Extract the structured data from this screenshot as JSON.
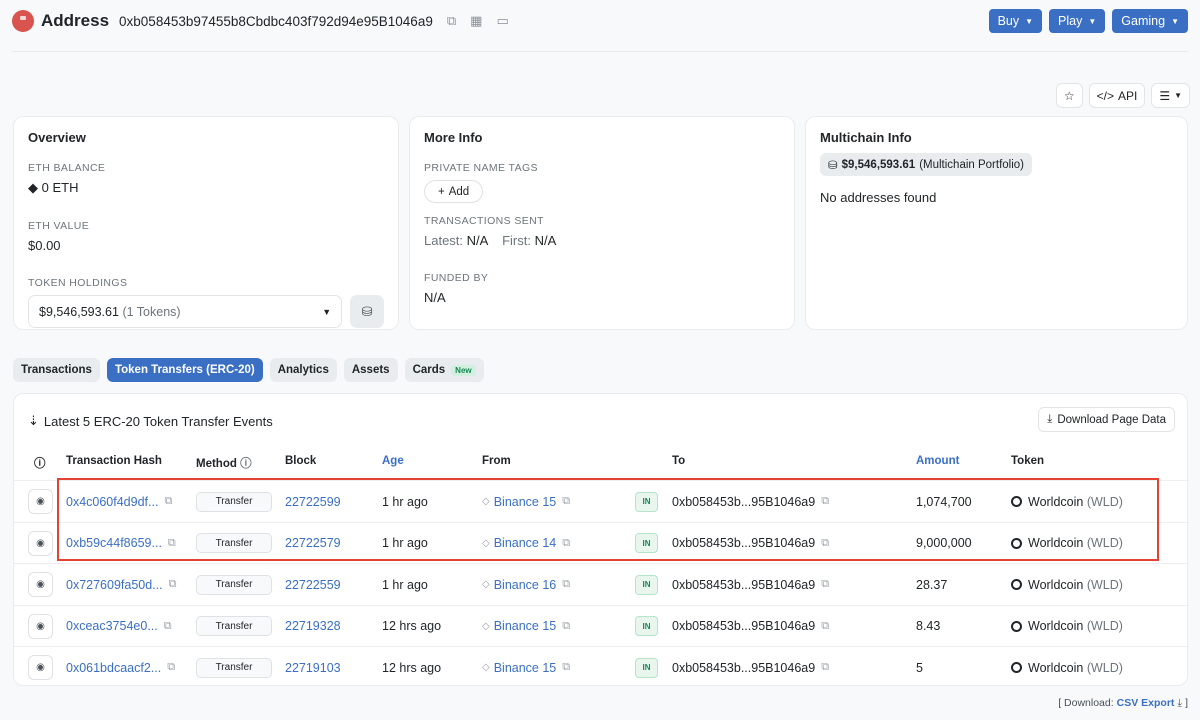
{
  "header": {
    "title": "Address",
    "address": "0xb058453b97455b8Cbdbc403f792d94e95B1046a9",
    "buttons": [
      {
        "label": "Buy"
      },
      {
        "label": "Play"
      },
      {
        "label": "Gaming"
      }
    ]
  },
  "toolbar": {
    "api_label": "API"
  },
  "overview": {
    "title": "Overview",
    "eth_balance_label": "ETH BALANCE",
    "eth_balance": "0 ETH",
    "eth_value_label": "ETH VALUE",
    "eth_value": "$0.00",
    "token_holdings_label": "TOKEN HOLDINGS",
    "token_holdings_value": "$9,546,593.61",
    "token_holdings_count": "(1 Tokens)"
  },
  "more_info": {
    "title": "More Info",
    "private_tags_label": "PRIVATE NAME TAGS",
    "add_label": "Add",
    "tx_sent_label": "TRANSACTIONS SENT",
    "latest_label": "Latest:",
    "latest_value": "N/A",
    "first_label": "First:",
    "first_value": "N/A",
    "funded_by_label": "FUNDED BY",
    "funded_by_value": "N/A"
  },
  "multichain": {
    "title": "Multichain Info",
    "portfolio_value": "$9,546,593.61",
    "portfolio_label": "(Multichain Portfolio)",
    "no_addresses": "No addresses found"
  },
  "tabs": [
    {
      "label": "Transactions",
      "active": false
    },
    {
      "label": "Token Transfers (ERC-20)",
      "active": true
    },
    {
      "label": "Analytics",
      "active": false
    },
    {
      "label": "Assets",
      "active": false
    },
    {
      "label": "Cards",
      "active": false,
      "badge": "New"
    }
  ],
  "table": {
    "title": "Latest 5 ERC-20 Token Transfer Events",
    "download_label": "Download Page Data",
    "columns": {
      "hash": "Transaction Hash",
      "method": "Method",
      "block": "Block",
      "age": "Age",
      "from": "From",
      "to": "To",
      "amount": "Amount",
      "token": "Token"
    },
    "rows": [
      {
        "hash": "0x4c060f4d9df...",
        "method": "Transfer",
        "block": "22722599",
        "age": "1 hr ago",
        "from": "Binance 15",
        "direction": "IN",
        "to": "0xb058453b...95B1046a9",
        "amount": "1,074,700",
        "token": "Worldcoin",
        "symbol": "(WLD)"
      },
      {
        "hash": "0xb59c44f8659...",
        "method": "Transfer",
        "block": "22722579",
        "age": "1 hr ago",
        "from": "Binance 14",
        "direction": "IN",
        "to": "0xb058453b...95B1046a9",
        "amount": "9,000,000",
        "token": "Worldcoin",
        "symbol": "(WLD)"
      },
      {
        "hash": "0x727609fa50d...",
        "method": "Transfer",
        "block": "22722559",
        "age": "1 hr ago",
        "from": "Binance 16",
        "direction": "IN",
        "to": "0xb058453b...95B1046a9",
        "amount": "28.37",
        "token": "Worldcoin",
        "symbol": "(WLD)"
      },
      {
        "hash": "0xceac3754e0...",
        "method": "Transfer",
        "block": "22719328",
        "age": "12 hrs ago",
        "from": "Binance 15",
        "direction": "IN",
        "to": "0xb058453b...95B1046a9",
        "amount": "8.43",
        "token": "Worldcoin",
        "symbol": "(WLD)"
      },
      {
        "hash": "0x061bdcaacf2...",
        "method": "Transfer",
        "block": "22719103",
        "age": "12 hrs ago",
        "from": "Binance 15",
        "direction": "IN",
        "to": "0xb058453b...95B1046a9",
        "amount": "5",
        "token": "Worldcoin",
        "symbol": "(WLD)"
      }
    ]
  },
  "footer": {
    "prefix": "[ Download:",
    "csv_label": "CSV Export",
    "suffix": "]"
  }
}
